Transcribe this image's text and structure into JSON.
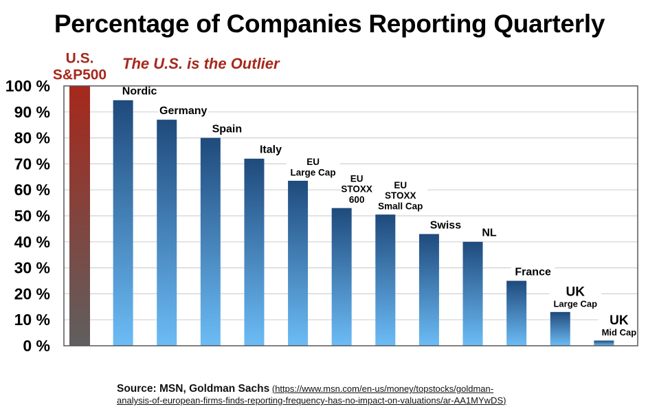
{
  "title": "Percentage of Companies Reporting Quarterly",
  "annotation": "The U.S. is the Outlier",
  "source": {
    "label": "Source: MSN, Goldman Sachs",
    "link_open": "(",
    "link_line1": "https://www.msn.com/en-us/money/topstocks/goldman-",
    "link_line2": "analysis-of-european-firms-finds-reporting-frequency-has-no-impact-on-valuations/ar-AA1MYwDS",
    "link_close": ")"
  },
  "colors": {
    "us_top": "#a6281c",
    "us_bottom": "#5f5f5f",
    "eu_top": "#1f4a7c",
    "eu_bottom": "#6cbcf6",
    "label_us": "#a6281c",
    "grid": "#d0d0d0",
    "axis": "#555555"
  },
  "chart_data": {
    "type": "bar",
    "title": "Percentage of Companies Reporting Quarterly",
    "xlabel": "",
    "ylabel": "",
    "ylim": [
      0,
      100
    ],
    "yticks": [
      0,
      10,
      20,
      30,
      40,
      50,
      60,
      70,
      80,
      90,
      100
    ],
    "ytick_labels": [
      "0 %",
      "10 %",
      "20 %",
      "30 %",
      "40 %",
      "50 %",
      "60 %",
      "70 %",
      "80 %",
      "90 %",
      "100 %"
    ],
    "grid": true,
    "legend": "none",
    "categories": [
      {
        "lines": [
          "U.S.",
          "S&P500"
        ],
        "highlight": true
      },
      {
        "lines": [
          "Nordic"
        ]
      },
      {
        "lines": [
          "Germany"
        ]
      },
      {
        "lines": [
          "Spain"
        ]
      },
      {
        "lines": [
          "Italy"
        ]
      },
      {
        "lines": [
          "EU",
          "Large Cap"
        ],
        "small": true
      },
      {
        "lines": [
          "EU",
          "STOXX",
          "600"
        ],
        "small": true
      },
      {
        "lines": [
          "EU",
          "STOXX",
          "Small Cap"
        ],
        "small": true
      },
      {
        "lines": [
          "Swiss"
        ]
      },
      {
        "lines": [
          "NL"
        ]
      },
      {
        "lines": [
          "France"
        ]
      },
      {
        "lines": [
          "UK",
          "Large Cap"
        ],
        "mixed": true
      },
      {
        "lines": [
          "UK",
          "Mid Cap"
        ],
        "mixed": true
      }
    ],
    "values": [
      100,
      94.5,
      87,
      80,
      72,
      63.5,
      53,
      50.5,
      43,
      40,
      25,
      13,
      2
    ],
    "annotations": [
      "The U.S. is the Outlier"
    ]
  }
}
